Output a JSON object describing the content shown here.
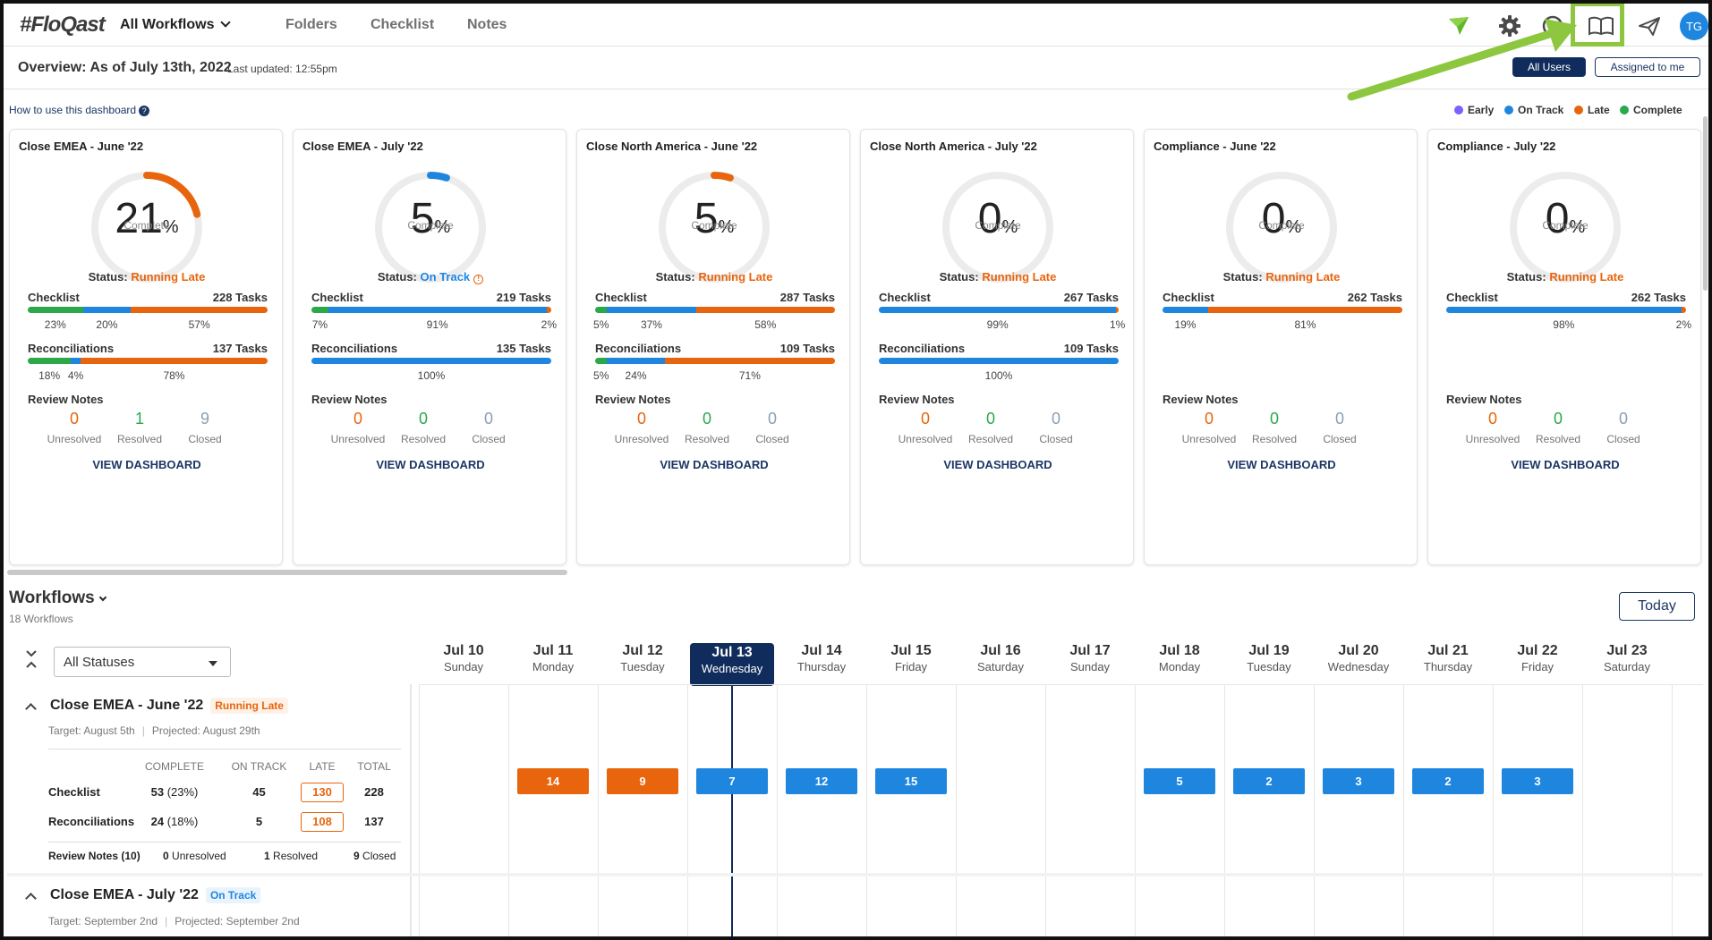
{
  "nav": {
    "logo": "#FloQast",
    "all_workflows": "All Workflows",
    "folders": "Folders",
    "checklist": "Checklist",
    "notes": "Notes",
    "avatar_initials": "TG",
    "icons": [
      "paper-plane-icon",
      "gear-icon",
      "help-circle-icon",
      "open-book-icon",
      "send-icon"
    ]
  },
  "overview": {
    "title": "Overview: As of July 13th, 2022",
    "updated": "Last updated: 12:55pm",
    "all_users": "All Users",
    "assigned_to_me": "Assigned to me",
    "how_to": "How to use this dashboard",
    "legend": [
      {
        "label": "Early",
        "color": "#7b61ff"
      },
      {
        "label": "On Track",
        "color": "#1f86e0"
      },
      {
        "label": "Late",
        "color": "#e8650d"
      },
      {
        "label": "Complete",
        "color": "#2aa84a"
      }
    ]
  },
  "labels": {
    "complete": "Complete",
    "status_prefix": "Status:",
    "checklist": "Checklist",
    "reconciliations": "Reconciliations",
    "review_notes": "Review Notes",
    "unresolved": "Unresolved",
    "resolved": "Resolved",
    "closed": "Closed",
    "view_dashboard": "VIEW DASHBOARD",
    "percent_sign": "%"
  },
  "cards": [
    {
      "title": "Close EMEA - June '22",
      "pct": "21",
      "pct_value": 21,
      "ring_color": "#e8650d",
      "status": "Running Late",
      "status_color": "#e8650d",
      "checklist_tasks": "228 Tasks",
      "checklist_segments": [
        {
          "pct": 23,
          "color": "#2aa84a"
        },
        {
          "pct": 20,
          "color": "#1f86e0"
        },
        {
          "pct": 57,
          "color": "#e8650d"
        }
      ],
      "checklist_labels": [
        "23%",
        "20%",
        "57%"
      ],
      "recon_tasks": "137 Tasks",
      "recon_segments": [
        {
          "pct": 18,
          "color": "#2aa84a"
        },
        {
          "pct": 4,
          "color": "#1f86e0"
        },
        {
          "pct": 78,
          "color": "#e8650d"
        }
      ],
      "recon_labels": [
        "18%",
        "4%",
        "78%"
      ],
      "notes": [
        "0",
        "1",
        "9"
      ]
    },
    {
      "title": "Close EMEA - July '22",
      "pct": "5",
      "pct_value": 5,
      "ring_color": "#1f86e0",
      "status": "On Track",
      "status_color": "#1f86e0",
      "checklist_tasks": "219 Tasks",
      "checklist_segments": [
        {
          "pct": 7,
          "color": "#2aa84a"
        },
        {
          "pct": 91,
          "color": "#1f86e0"
        },
        {
          "pct": 2,
          "color": "#e8650d"
        }
      ],
      "checklist_labels": [
        "7%",
        "91%",
        "2%"
      ],
      "recon_tasks": "135 Tasks",
      "recon_segments": [
        {
          "pct": 100,
          "color": "#1f86e0"
        }
      ],
      "recon_labels": [
        "100%"
      ],
      "notes": [
        "0",
        "0",
        "0"
      ]
    },
    {
      "title": "Close North America - June '22",
      "pct": "5",
      "pct_value": 5,
      "ring_color": "#e8650d",
      "status": "Running Late",
      "status_color": "#e8650d",
      "checklist_tasks": "287 Tasks",
      "checklist_segments": [
        {
          "pct": 5,
          "color": "#2aa84a"
        },
        {
          "pct": 37,
          "color": "#1f86e0"
        },
        {
          "pct": 58,
          "color": "#e8650d"
        }
      ],
      "checklist_labels": [
        "5%",
        "37%",
        "58%"
      ],
      "recon_tasks": "109 Tasks",
      "recon_segments": [
        {
          "pct": 5,
          "color": "#2aa84a"
        },
        {
          "pct": 24,
          "color": "#1f86e0"
        },
        {
          "pct": 71,
          "color": "#e8650d"
        }
      ],
      "recon_labels": [
        "5%",
        "24%",
        "71%"
      ],
      "notes": [
        "0",
        "0",
        "0"
      ]
    },
    {
      "title": "Close North America - July '22",
      "pct": "0",
      "pct_value": 0,
      "ring_color": "#1f86e0",
      "status": "Running Late",
      "status_color": "#e8650d",
      "checklist_tasks": "267 Tasks",
      "checklist_segments": [
        {
          "pct": 99,
          "color": "#1f86e0"
        },
        {
          "pct": 1,
          "color": "#e8650d"
        }
      ],
      "checklist_labels": [
        "99%",
        "1%"
      ],
      "recon_tasks": "109 Tasks",
      "recon_segments": [
        {
          "pct": 100,
          "color": "#1f86e0"
        }
      ],
      "recon_labels": [
        "100%"
      ],
      "notes": [
        "0",
        "0",
        "0"
      ]
    },
    {
      "title": "Compliance - June '22",
      "pct": "0",
      "pct_value": 0,
      "ring_color": "#1f86e0",
      "status": "Running Late",
      "status_color": "#e8650d",
      "checklist_tasks": "262 Tasks",
      "checklist_segments": [
        {
          "pct": 19,
          "color": "#1f86e0"
        },
        {
          "pct": 81,
          "color": "#e8650d"
        }
      ],
      "checklist_labels": [
        "19%",
        "81%"
      ],
      "notes": [
        "0",
        "0",
        "0"
      ]
    },
    {
      "title": "Compliance - July '22",
      "pct": "0",
      "pct_value": 0,
      "ring_color": "#1f86e0",
      "status": "Running Late",
      "status_color": "#e8650d",
      "checklist_tasks": "262 Tasks",
      "checklist_segments": [
        {
          "pct": 98,
          "color": "#1f86e0"
        },
        {
          "pct": 2,
          "color": "#e8650d"
        }
      ],
      "checklist_labels": [
        "98%",
        "2%"
      ],
      "notes": [
        "0",
        "0",
        "0"
      ]
    }
  ],
  "workflows": {
    "title": "Workflows",
    "count": "18 Workflows",
    "today_button": "Today",
    "status_filter": "All Statuses",
    "days": [
      {
        "date": "Jul 10",
        "weekday": "Sunday"
      },
      {
        "date": "Jul 11",
        "weekday": "Monday"
      },
      {
        "date": "Jul 12",
        "weekday": "Tuesday"
      },
      {
        "date": "Jul 13",
        "weekday": "Wednesday",
        "today": true
      },
      {
        "date": "Jul 14",
        "weekday": "Thursday"
      },
      {
        "date": "Jul 15",
        "weekday": "Friday"
      },
      {
        "date": "Jul 16",
        "weekday": "Saturday"
      },
      {
        "date": "Jul 17",
        "weekday": "Sunday"
      },
      {
        "date": "Jul 18",
        "weekday": "Monday"
      },
      {
        "date": "Jul 19",
        "weekday": "Tuesday"
      },
      {
        "date": "Jul 20",
        "weekday": "Wednesday"
      },
      {
        "date": "Jul 21",
        "weekday": "Thursday"
      },
      {
        "date": "Jul 22",
        "weekday": "Friday"
      },
      {
        "date": "Jul 23",
        "weekday": "Saturday"
      }
    ],
    "items": [
      {
        "name": "Close EMEA - June '22",
        "status": "Running Late",
        "target": "Target: August 5th",
        "projected": "Projected: August 29th",
        "columns": [
          "COMPLETE",
          "ON TRACK",
          "LATE",
          "TOTAL"
        ],
        "rows": [
          {
            "label": "Checklist",
            "complete": "53",
            "complete_pct": "(23%)",
            "on_track": "45",
            "late": "130",
            "total": "228"
          },
          {
            "label": "Reconciliations",
            "complete": "24",
            "complete_pct": "(18%)",
            "on_track": "5",
            "late": "108",
            "total": "137"
          }
        ],
        "review_notes": "Review Notes (10)",
        "unresolved_n": "0",
        "unresolved": "Unresolved",
        "resolved_n": "1",
        "resolved": "Resolved",
        "closed_n": "9",
        "closed": "Closed",
        "timeline": [
          {
            "day": 1,
            "count": "14",
            "color": "#e8650d"
          },
          {
            "day": 2,
            "count": "9",
            "color": "#e8650d"
          },
          {
            "day": 3,
            "count": "7",
            "color": "#1f86e0"
          },
          {
            "day": 4,
            "count": "12",
            "color": "#1f86e0"
          },
          {
            "day": 5,
            "count": "15",
            "color": "#1f86e0"
          },
          {
            "day": 8,
            "count": "5",
            "color": "#1f86e0"
          },
          {
            "day": 9,
            "count": "2",
            "color": "#1f86e0"
          },
          {
            "day": 10,
            "count": "3",
            "color": "#1f86e0"
          },
          {
            "day": 11,
            "count": "2",
            "color": "#1f86e0"
          },
          {
            "day": 12,
            "count": "3",
            "color": "#1f86e0"
          }
        ]
      },
      {
        "name": "Close EMEA - July '22",
        "status": "On Track",
        "target": "Target: September 2nd",
        "projected": "Projected: September 2nd"
      }
    ]
  }
}
